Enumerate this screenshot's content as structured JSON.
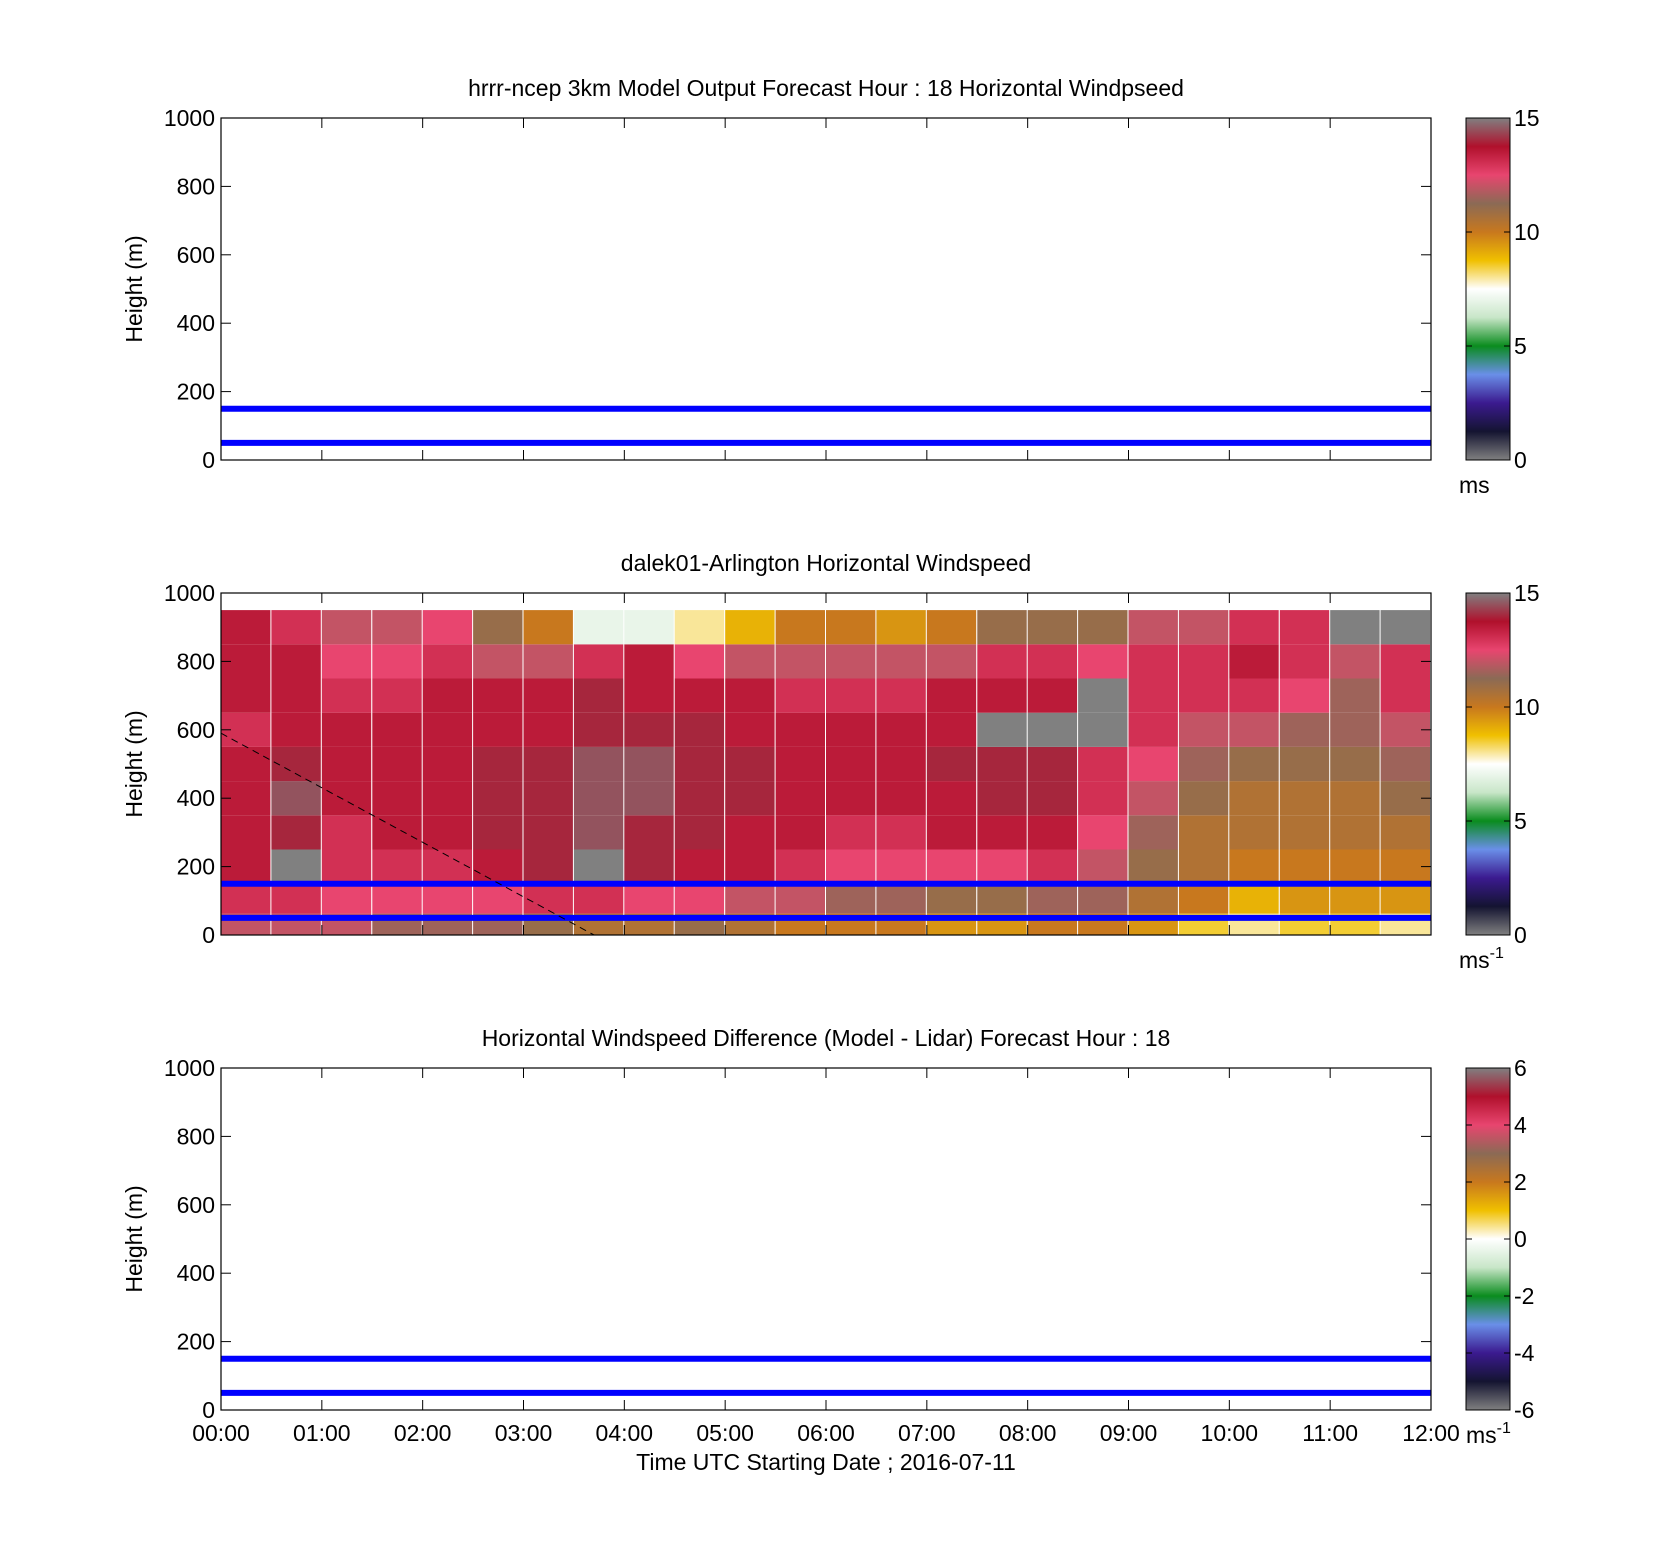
{
  "figure": {
    "xlabel": "Time UTC  Starting Date ; 2016-07-11",
    "x_ticks": [
      "00:00",
      "01:00",
      "02:00",
      "03:00",
      "04:00",
      "05:00",
      "06:00",
      "07:00",
      "08:00",
      "09:00",
      "10:00",
      "11:00",
      "12:00"
    ],
    "colormap": [
      "#808080",
      "#141431",
      "#3b1a8f",
      "#6a8fe8",
      "#0a8c1e",
      "#c8e6c8",
      "#ffffff",
      "#f0c000",
      "#c8781e",
      "#8b6a55",
      "#e8456f",
      "#b0102c",
      "#808080"
    ]
  },
  "chart_data": [
    {
      "type": "heatmap",
      "panel": "model",
      "title": "hrrr-ncep 3km Model Output   Forecast Hour : 18 Horizontal Windpseed",
      "ylabel": "Height (m)",
      "x_range_hours": [
        0,
        12
      ],
      "ylim": [
        0,
        1000
      ],
      "y_ticks": [
        "0",
        "200",
        "400",
        "600",
        "800",
        "1000"
      ],
      "values": [],
      "reference_heights_m": [
        50,
        150
      ],
      "reference_color": "#0000ff",
      "colorbar": {
        "min": 0,
        "max": 15,
        "ticks": [
          "0",
          "5",
          "10",
          "15"
        ],
        "unit": "ms",
        "unit_sup": ""
      }
    },
    {
      "type": "heatmap",
      "panel": "lidar",
      "title": "dalek01-Arlington  Horizontal Windspeed",
      "ylabel": "Height (m)",
      "x_range_hours": [
        0,
        12
      ],
      "ylim": [
        0,
        1000
      ],
      "y_ticks": [
        "0",
        "200",
        "400",
        "600",
        "800",
        "1000"
      ],
      "approx_profiles": {
        "note_values": "approximate windspeed (m/s) vs height, one row per time column group",
        "time_hours": [
          0.25,
          0.75,
          1.25,
          1.75,
          2.25,
          2.75,
          3.25,
          3.75,
          4.25,
          4.75,
          5.25,
          5.75,
          6.25,
          6.75,
          7.25,
          7.75,
          8.25,
          8.75,
          9.25,
          9.75,
          10.25,
          10.75,
          11.25,
          11.75
        ],
        "heights_m": [
          25,
          100,
          200,
          300,
          400,
          500,
          600,
          700,
          800,
          900
        ],
        "speed_ms": [
          [
            12,
            13,
            13.5,
            13.5,
            13.5,
            13.5,
            13,
            13.5,
            13.5,
            13.5
          ],
          [
            12,
            13,
            0,
            14,
            14.5,
            14,
            13.5,
            13.5,
            13.5,
            13
          ],
          [
            12,
            12.5,
            13,
            13,
            13.5,
            13.5,
            13.5,
            13,
            12.5,
            12
          ],
          [
            11.5,
            12.5,
            13,
            13.5,
            13.5,
            13.5,
            13.5,
            13,
            12.5,
            12
          ],
          [
            11.5,
            12.5,
            13,
            13.5,
            13.5,
            13.5,
            13.5,
            13.5,
            13,
            12.5
          ],
          [
            11.5,
            12.5,
            13.5,
            14,
            14,
            14,
            13.5,
            13.5,
            12,
            11
          ],
          [
            11,
            13,
            14,
            14,
            14,
            14,
            13.5,
            13.5,
            12,
            10
          ],
          [
            10.5,
            13,
            0,
            14.5,
            14.5,
            14.5,
            14,
            14,
            13,
            7
          ],
          [
            10.5,
            12.5,
            14,
            14,
            14.5,
            14.5,
            14,
            13.5,
            13.5,
            7
          ],
          [
            11,
            12.5,
            13.5,
            14,
            14,
            14,
            14,
            13.5,
            12.5,
            8
          ],
          [
            10.5,
            12,
            13.5,
            13.5,
            14,
            14,
            13.5,
            13.5,
            12,
            9
          ],
          [
            10,
            12,
            13,
            13.5,
            13.5,
            13.5,
            13.5,
            13,
            12,
            10
          ],
          [
            10,
            11.5,
            12.5,
            13,
            13.5,
            13.5,
            13.5,
            13,
            12,
            10
          ],
          [
            10,
            11.5,
            12.5,
            13,
            13.5,
            13.5,
            13.5,
            13,
            12,
            9.5
          ],
          [
            9.5,
            11,
            12.5,
            13.5,
            13.5,
            14,
            13.5,
            13.5,
            12,
            10
          ],
          [
            9.5,
            11,
            12.5,
            13.5,
            14,
            14,
            0,
            13.5,
            13,
            11
          ],
          [
            10,
            11.5,
            13,
            13.5,
            14,
            14,
            0,
            13.5,
            13,
            11
          ],
          [
            10,
            11.5,
            12,
            12.5,
            13,
            13,
            0,
            0,
            12.5,
            11
          ],
          [
            9.5,
            10.5,
            11,
            11.5,
            12,
            12.5,
            13,
            13,
            13,
            12
          ],
          [
            8.5,
            10,
            10.5,
            10.5,
            11,
            11.5,
            12,
            13,
            13,
            12
          ],
          [
            8,
            9,
            10,
            10.5,
            10.5,
            11,
            12,
            13,
            13.5,
            13
          ],
          [
            8.5,
            9.5,
            10,
            10.5,
            10.5,
            11,
            11.5,
            12.5,
            13,
            13
          ],
          [
            8.5,
            9.5,
            10,
            10.5,
            10.5,
            11,
            11.5,
            11.5,
            12,
            0
          ],
          [
            8,
            9.5,
            10,
            10.5,
            11,
            11.5,
            12,
            13,
            13,
            0
          ]
        ]
      },
      "reference_heights_m": [
        50,
        150
      ],
      "reference_color": "#0000ff",
      "dashed_line": {
        "x_hours": [
          0,
          3.7
        ],
        "y_m": [
          590,
          0
        ]
      },
      "colorbar": {
        "min": 0,
        "max": 15,
        "ticks": [
          "0",
          "5",
          "10",
          "15"
        ],
        "unit": "ms",
        "unit_sup": "-1"
      }
    },
    {
      "type": "heatmap",
      "panel": "difference",
      "title": "Horizontal Windspeed Difference (Model - Lidar) Forecast Hour : 18",
      "ylabel": "Height (m)",
      "x_range_hours": [
        0,
        12
      ],
      "ylim": [
        0,
        1000
      ],
      "y_ticks": [
        "0",
        "200",
        "400",
        "600",
        "800",
        "1000"
      ],
      "values": [],
      "reference_heights_m": [
        50,
        150
      ],
      "reference_color": "#0000ff",
      "colorbar": {
        "min": -6,
        "max": 6,
        "ticks": [
          "-6",
          "-4",
          "-2",
          "0",
          "2",
          "4",
          "6"
        ],
        "unit": "ms",
        "unit_sup": "-1"
      }
    }
  ]
}
